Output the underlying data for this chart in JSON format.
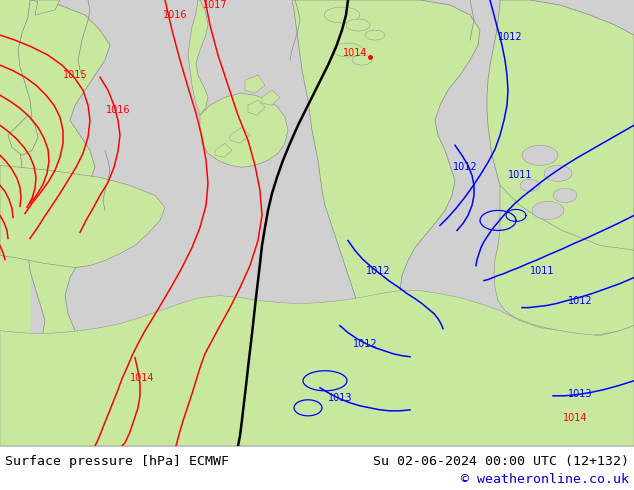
{
  "title_left": "Surface pressure [hPa] ECMWF",
  "title_right": "Su 02-06-2024 00:00 UTC (12+132)",
  "copyright": "© weatheronline.co.uk",
  "land_color": "#c8e8a0",
  "sea_color": "#d0d0d0",
  "footer_bg": "#ffffff",
  "footer_text_color": "#000000",
  "copyright_color": "#0000cc",
  "red": "#ff0000",
  "blue": "#0000ff",
  "black": "#000000",
  "coast_color": "#888888",
  "figsize": [
    6.34,
    4.9
  ],
  "dpi": 100
}
